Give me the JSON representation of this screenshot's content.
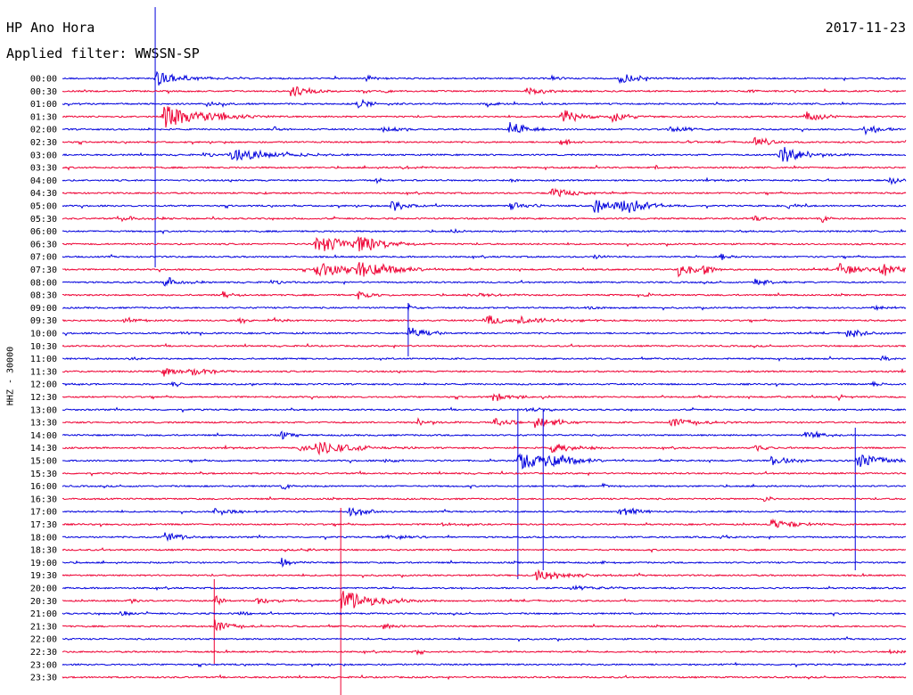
{
  "header": {
    "station": "HP Ano Hora",
    "date": "2017-11-23",
    "filter_label": "Applied filter: WWSSN-SP"
  },
  "colors": {
    "blue": "#0000dd",
    "red": "#ee0033"
  },
  "chart_data": {
    "type": "line",
    "title": "HP Ano Hora",
    "ylabel": "HHZ - 30000",
    "row_labels": [
      "00:00",
      "00:30",
      "01:00",
      "01:30",
      "02:00",
      "02:30",
      "03:00",
      "03:30",
      "04:00",
      "04:30",
      "05:00",
      "05:30",
      "06:00",
      "06:30",
      "07:00",
      "07:30",
      "08:00",
      "08:30",
      "09:00",
      "09:30",
      "10:00",
      "10:30",
      "11:00",
      "11:30",
      "12:00",
      "12:30",
      "13:00",
      "13:30",
      "14:00",
      "14:30",
      "15:00",
      "15:30",
      "16:00",
      "16:30",
      "17:00",
      "17:30",
      "18:00",
      "18:30",
      "19:00",
      "19:30",
      "20:00",
      "20:30",
      "21:00",
      "21:30",
      "22:00",
      "22:30",
      "23:00",
      "23:30"
    ],
    "series_colors_alternate": [
      "blue",
      "red"
    ],
    "events": [
      {
        "row": 0,
        "x": 0.11,
        "amp": 1.0,
        "dur": 0.03,
        "clip": [
          8,
          300
        ]
      },
      {
        "row": 0,
        "x": 0.66,
        "amp": 0.8,
        "dur": 0.02
      },
      {
        "row": 0,
        "x": 0.36,
        "amp": 0.4,
        "dur": 0.01
      },
      {
        "row": 0,
        "x": 0.58,
        "amp": 0.3,
        "dur": 0.01
      },
      {
        "row": 1,
        "x": 0.27,
        "amp": 0.9,
        "dur": 0.02
      },
      {
        "row": 1,
        "x": 0.55,
        "amp": 0.6,
        "dur": 0.02
      },
      {
        "row": 1,
        "x": 0.38,
        "amp": 0.3,
        "dur": 0.01
      },
      {
        "row": 1,
        "x": 0.81,
        "amp": 0.3,
        "dur": 0.01
      },
      {
        "row": 2,
        "x": 0.35,
        "amp": 0.6,
        "dur": 0.02
      },
      {
        "row": 2,
        "x": 0.5,
        "amp": 0.5,
        "dur": 0.01
      },
      {
        "row": 2,
        "x": 0.17,
        "amp": 0.3,
        "dur": 0.02
      },
      {
        "row": 3,
        "x": 0.12,
        "amp": 1.4,
        "dur": 0.05
      },
      {
        "row": 3,
        "x": 0.59,
        "amp": 1.1,
        "dur": 0.02
      },
      {
        "row": 3,
        "x": 0.65,
        "amp": 0.7,
        "dur": 0.02
      },
      {
        "row": 3,
        "x": 0.88,
        "amp": 0.7,
        "dur": 0.02
      },
      {
        "row": 3,
        "x": 0.19,
        "amp": 0.3,
        "dur": 0.02
      },
      {
        "row": 4,
        "x": 0.53,
        "amp": 1.0,
        "dur": 0.02
      },
      {
        "row": 4,
        "x": 0.38,
        "amp": 0.6,
        "dur": 0.02
      },
      {
        "row": 4,
        "x": 0.72,
        "amp": 0.6,
        "dur": 0.02
      },
      {
        "row": 4,
        "x": 0.95,
        "amp": 0.7,
        "dur": 0.02
      },
      {
        "row": 4,
        "x": 0.25,
        "amp": 0.4,
        "dur": 0.01
      },
      {
        "row": 5,
        "x": 0.82,
        "amp": 0.6,
        "dur": 0.02
      },
      {
        "row": 5,
        "x": 0.74,
        "amp": 0.3,
        "dur": 0.01
      },
      {
        "row": 5,
        "x": 0.59,
        "amp": 0.7,
        "dur": 0.01
      },
      {
        "row": 6,
        "x": 0.2,
        "amp": 0.8,
        "dur": 0.05
      },
      {
        "row": 6,
        "x": 0.85,
        "amp": 1.2,
        "dur": 0.03
      },
      {
        "row": 6,
        "x": 0.17,
        "amp": 0.3,
        "dur": 0.01
      },
      {
        "row": 7,
        "x": 0.7,
        "amp": 0.3,
        "dur": 0.01
      },
      {
        "row": 7,
        "x": 0.4,
        "amp": 0.2,
        "dur": 0.02
      },
      {
        "row": 8,
        "x": 0.37,
        "amp": 0.5,
        "dur": 0.01
      },
      {
        "row": 8,
        "x": 0.98,
        "amp": 0.6,
        "dur": 0.01
      },
      {
        "row": 8,
        "x": 0.53,
        "amp": 0.3,
        "dur": 0.01
      },
      {
        "row": 9,
        "x": 0.58,
        "amp": 0.6,
        "dur": 0.03
      },
      {
        "row": 9,
        "x": 0.23,
        "amp": 0.2,
        "dur": 0.01
      },
      {
        "row": 10,
        "x": 0.39,
        "amp": 0.8,
        "dur": 0.02
      },
      {
        "row": 10,
        "x": 0.53,
        "amp": 0.6,
        "dur": 0.02
      },
      {
        "row": 10,
        "x": 0.63,
        "amp": 1.1,
        "dur": 0.03
      },
      {
        "row": 10,
        "x": 0.66,
        "amp": 1.0,
        "dur": 0.03
      },
      {
        "row": 10,
        "x": 0.86,
        "amp": 0.4,
        "dur": 0.01
      },
      {
        "row": 11,
        "x": 0.82,
        "amp": 0.5,
        "dur": 0.01
      },
      {
        "row": 11,
        "x": 0.9,
        "amp": 0.5,
        "dur": 0.01
      },
      {
        "row": 11,
        "x": 0.07,
        "amp": 0.3,
        "dur": 0.04
      },
      {
        "row": 12,
        "x": 0.46,
        "amp": 0.4,
        "dur": 0.01
      },
      {
        "row": 12,
        "x": 0.8,
        "amp": 0.3,
        "dur": 0.01
      },
      {
        "row": 13,
        "x": 0.3,
        "amp": 1.2,
        "dur": 0.04
      },
      {
        "row": 13,
        "x": 0.35,
        "amp": 1.1,
        "dur": 0.03
      },
      {
        "row": 14,
        "x": 0.78,
        "amp": 0.5,
        "dur": 0.01
      },
      {
        "row": 14,
        "x": 0.63,
        "amp": 0.3,
        "dur": 0.01
      },
      {
        "row": 15,
        "x": 0.73,
        "amp": 0.9,
        "dur": 0.02
      },
      {
        "row": 15,
        "x": 0.76,
        "amp": 0.8,
        "dur": 0.01
      },
      {
        "row": 15,
        "x": 0.92,
        "amp": 0.9,
        "dur": 0.02
      },
      {
        "row": 15,
        "x": 0.97,
        "amp": 1.0,
        "dur": 0.02
      },
      {
        "row": 15,
        "x": 0.3,
        "amp": 1.0,
        "dur": 0.04
      },
      {
        "row": 15,
        "x": 0.35,
        "amp": 1.2,
        "dur": 0.04
      },
      {
        "row": 16,
        "x": 0.12,
        "amp": 0.8,
        "dur": 0.02
      },
      {
        "row": 16,
        "x": 0.82,
        "amp": 0.6,
        "dur": 0.02
      },
      {
        "row": 16,
        "x": 0.25,
        "amp": 0.3,
        "dur": 0.01
      },
      {
        "row": 17,
        "x": 0.19,
        "amp": 0.6,
        "dur": 0.01
      },
      {
        "row": 17,
        "x": 0.69,
        "amp": 0.4,
        "dur": 0.01
      },
      {
        "row": 17,
        "x": 0.48,
        "amp": 0.3,
        "dur": 0.03
      },
      {
        "row": 17,
        "x": 0.35,
        "amp": 0.5,
        "dur": 0.02
      },
      {
        "row": 18,
        "x": 0.41,
        "amp": 0.4,
        "dur": 0.01
      },
      {
        "row": 18,
        "x": 0.96,
        "amp": 0.6,
        "dur": 0.01
      },
      {
        "row": 18,
        "x": 0.62,
        "amp": 0.3,
        "dur": 0.02
      },
      {
        "row": 19,
        "x": 0.21,
        "amp": 0.4,
        "dur": 0.01
      },
      {
        "row": 19,
        "x": 0.25,
        "amp": 0.4,
        "dur": 0.01
      },
      {
        "row": 19,
        "x": 0.5,
        "amp": 0.8,
        "dur": 0.02
      },
      {
        "row": 19,
        "x": 0.54,
        "amp": 0.4,
        "dur": 0.05
      },
      {
        "row": 19,
        "x": 0.07,
        "amp": 0.3,
        "dur": 0.02
      },
      {
        "row": 20,
        "x": 0.41,
        "amp": 0.9,
        "dur": 0.02,
        "clip": [
          340,
          400
        ]
      },
      {
        "row": 20,
        "x": 0.93,
        "amp": 0.7,
        "dur": 0.02
      },
      {
        "row": 20,
        "x": 0.14,
        "amp": 0.2,
        "dur": 0.02
      },
      {
        "row": 22,
        "x": 0.08,
        "amp": 0.3,
        "dur": 0.01
      },
      {
        "row": 22,
        "x": 0.97,
        "amp": 0.5,
        "dur": 0.01
      },
      {
        "row": 23,
        "x": 0.12,
        "amp": 0.6,
        "dur": 0.02
      },
      {
        "row": 23,
        "x": 0.15,
        "amp": 0.5,
        "dur": 0.03
      },
      {
        "row": 24,
        "x": 0.13,
        "amp": 0.4,
        "dur": 0.01
      },
      {
        "row": 24,
        "x": 0.96,
        "amp": 0.4,
        "dur": 0.01
      },
      {
        "row": 25,
        "x": 0.51,
        "amp": 0.6,
        "dur": 0.02
      },
      {
        "row": 25,
        "x": 0.92,
        "amp": 0.4,
        "dur": 0.01
      },
      {
        "row": 26,
        "x": 0.55,
        "amp": 0.3,
        "dur": 0.02
      },
      {
        "row": 27,
        "x": 0.42,
        "amp": 0.5,
        "dur": 0.02
      },
      {
        "row": 27,
        "x": 0.51,
        "amp": 0.7,
        "dur": 0.02
      },
      {
        "row": 27,
        "x": 0.56,
        "amp": 0.8,
        "dur": 0.02
      },
      {
        "row": 27,
        "x": 0.58,
        "amp": 0.4,
        "dur": 0.02
      },
      {
        "row": 27,
        "x": 0.72,
        "amp": 0.7,
        "dur": 0.03
      },
      {
        "row": 28,
        "x": 0.26,
        "amp": 0.7,
        "dur": 0.01
      },
      {
        "row": 28,
        "x": 0.88,
        "amp": 0.6,
        "dur": 0.02
      },
      {
        "row": 29,
        "x": 0.28,
        "amp": 0.5,
        "dur": 0.03
      },
      {
        "row": 29,
        "x": 0.3,
        "amp": 0.9,
        "dur": 0.04
      },
      {
        "row": 29,
        "x": 0.58,
        "amp": 0.6,
        "dur": 0.03
      },
      {
        "row": 29,
        "x": 0.82,
        "amp": 0.4,
        "dur": 0.02
      },
      {
        "row": 30,
        "x": 0.54,
        "amp": 1.3,
        "dur": 0.03,
        "clip": [
          460,
          650
        ]
      },
      {
        "row": 30,
        "x": 0.57,
        "amp": 1.2,
        "dur": 0.03,
        "clip": [
          460,
          640
        ]
      },
      {
        "row": 30,
        "x": 0.84,
        "amp": 0.6,
        "dur": 0.03
      },
      {
        "row": 30,
        "x": 0.94,
        "amp": 1.1,
        "dur": 0.03,
        "clip": [
          480,
          640
        ]
      },
      {
        "row": 30,
        "x": 0.38,
        "amp": 0.3,
        "dur": 0.02
      },
      {
        "row": 32,
        "x": 0.26,
        "amp": 0.5,
        "dur": 0.01
      },
      {
        "row": 32,
        "x": 0.64,
        "amp": 0.3,
        "dur": 0.01
      },
      {
        "row": 33,
        "x": 0.83,
        "amp": 0.5,
        "dur": 0.01
      },
      {
        "row": 34,
        "x": 0.34,
        "amp": 0.8,
        "dur": 0.02
      },
      {
        "row": 34,
        "x": 0.18,
        "amp": 0.4,
        "dur": 0.03
      },
      {
        "row": 34,
        "x": 0.66,
        "amp": 0.7,
        "dur": 0.02
      },
      {
        "row": 35,
        "x": 0.84,
        "amp": 0.7,
        "dur": 0.03
      },
      {
        "row": 35,
        "x": 0.45,
        "amp": 0.2,
        "dur": 0.01
      },
      {
        "row": 36,
        "x": 0.12,
        "amp": 0.7,
        "dur": 0.02
      },
      {
        "row": 36,
        "x": 0.38,
        "amp": 0.3,
        "dur": 0.03
      },
      {
        "row": 36,
        "x": 0.78,
        "amp": 0.3,
        "dur": 0.01
      },
      {
        "row": 37,
        "x": 0.29,
        "amp": 0.3,
        "dur": 0.01
      },
      {
        "row": 38,
        "x": 0.26,
        "amp": 0.6,
        "dur": 0.01
      },
      {
        "row": 38,
        "x": 0.64,
        "amp": 0.3,
        "dur": 0.01
      },
      {
        "row": 39,
        "x": 0.56,
        "amp": 0.7,
        "dur": 0.04
      },
      {
        "row": 40,
        "x": 0.6,
        "amp": 0.3,
        "dur": 0.04
      },
      {
        "row": 41,
        "x": 0.33,
        "amp": 1.4,
        "dur": 0.04,
        "clip": [
          570,
          780
        ]
      },
      {
        "row": 41,
        "x": 0.18,
        "amp": 0.7,
        "dur": 0.01,
        "clip": [
          650,
          745
        ]
      },
      {
        "row": 41,
        "x": 0.23,
        "amp": 0.5,
        "dur": 0.02
      },
      {
        "row": 41,
        "x": 0.08,
        "amp": 0.4,
        "dur": 0.01
      },
      {
        "row": 42,
        "x": 0.07,
        "amp": 0.5,
        "dur": 0.01
      },
      {
        "row": 42,
        "x": 0.21,
        "amp": 0.3,
        "dur": 0.01
      },
      {
        "row": 43,
        "x": 0.18,
        "amp": 0.9,
        "dur": 0.02
      },
      {
        "row": 43,
        "x": 0.38,
        "amp": 0.3,
        "dur": 0.02
      },
      {
        "row": 45,
        "x": 0.42,
        "amp": 0.4,
        "dur": 0.01
      },
      {
        "row": 45,
        "x": 0.98,
        "amp": 0.3,
        "dur": 0.01
      },
      {
        "row": 46,
        "x": 0.78,
        "amp": 0.2,
        "dur": 0.01
      }
    ]
  }
}
